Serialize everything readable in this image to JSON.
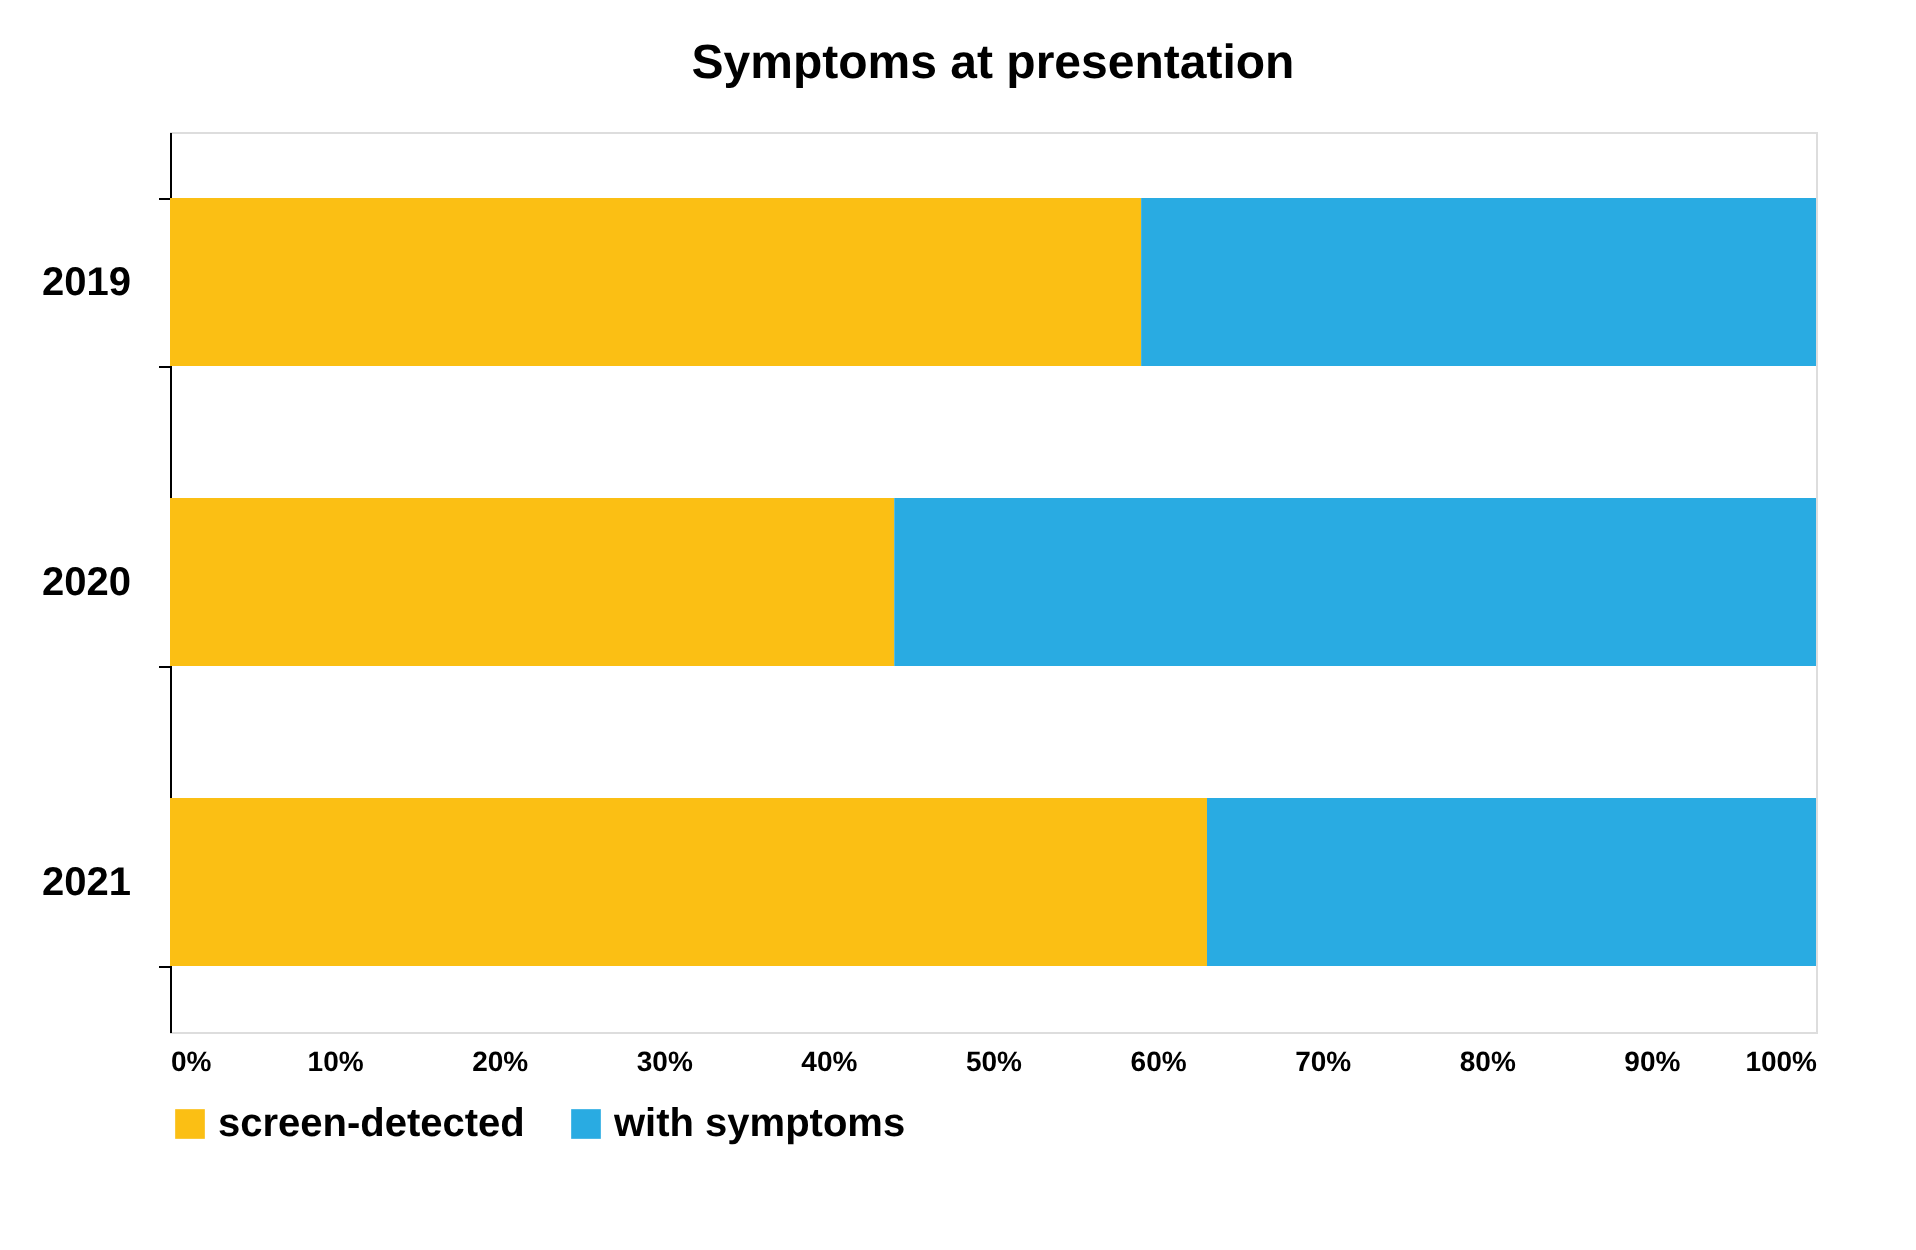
{
  "chart_data": {
    "type": "bar",
    "orientation": "horizontal",
    "stacked": true,
    "title": "Symptoms at presentation",
    "categories": [
      "2019",
      "2020",
      "2021"
    ],
    "series": [
      {
        "name": "screen-detected",
        "color": "#fbbf14",
        "values": [
          59,
          44,
          63
        ]
      },
      {
        "name": "with symptoms",
        "color": "#29abe2",
        "values": [
          41,
          56,
          37
        ]
      }
    ],
    "xlim": [
      0,
      100
    ],
    "xticks": [
      {
        "value": 0,
        "label": "0%"
      },
      {
        "value": 10,
        "label": "10%"
      },
      {
        "value": 20,
        "label": "20%"
      },
      {
        "value": 30,
        "label": "30%"
      },
      {
        "value": 40,
        "label": "40%"
      },
      {
        "value": 50,
        "label": "50%"
      },
      {
        "value": 60,
        "label": "60%"
      },
      {
        "value": 70,
        "label": "70%"
      },
      {
        "value": 80,
        "label": "80%"
      },
      {
        "value": 90,
        "label": "90%"
      },
      {
        "value": 100,
        "label": "100%"
      }
    ],
    "grid": false,
    "legend": "bottom"
  }
}
